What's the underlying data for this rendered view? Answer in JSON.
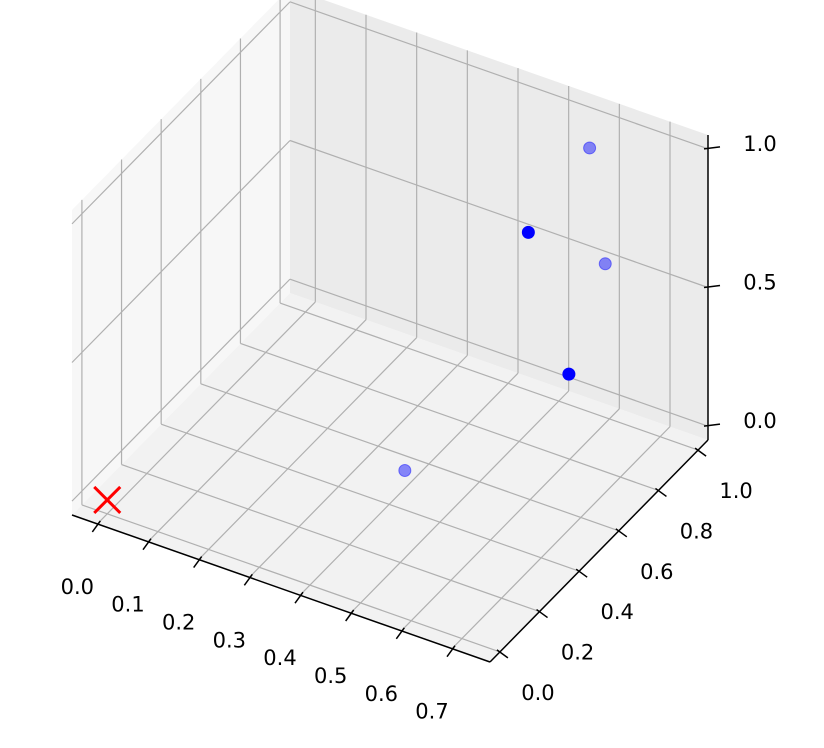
{
  "chart_data": {
    "type": "scatter3d",
    "xlim": [
      -0.05,
      0.775
    ],
    "ylim": [
      -0.05,
      1.05
    ],
    "zlim": [
      -0.05,
      1.05
    ],
    "xticks": [
      {
        "value": 0,
        "label": "0.0"
      },
      0.1,
      0.2,
      0.3,
      0.4,
      0.5,
      0.6,
      0.7
    ],
    "yticks": [
      {
        "value": 0,
        "label": "0.0"
      },
      0.2,
      0.4,
      0.6,
      0.8,
      {
        "value": 1,
        "label": "1.0"
      }
    ],
    "zticks": [
      {
        "value": 0,
        "label": "0.0"
      },
      0.5,
      {
        "value": 1,
        "label": "1.0"
      }
    ],
    "grid": true,
    "series": [
      {
        "marker": "o",
        "color": "#0000ff",
        "x": [
          0.44,
          0.52,
          0.6,
          0.67,
          0.47
        ],
        "y": [
          1.0,
          1.0,
          0.9,
          0.8,
          0.3
        ],
        "z": [
          0.52,
          0.06,
          1.0,
          0.7,
          0.19
        ],
        "alpha": [
          1,
          1,
          0.45,
          0.45,
          0.45
        ]
      },
      {
        "marker": "x",
        "color": "#ff0000",
        "x": [
          0
        ],
        "y": [
          0
        ],
        "z": [
          0
        ],
        "alpha": [
          1
        ]
      }
    ]
  }
}
